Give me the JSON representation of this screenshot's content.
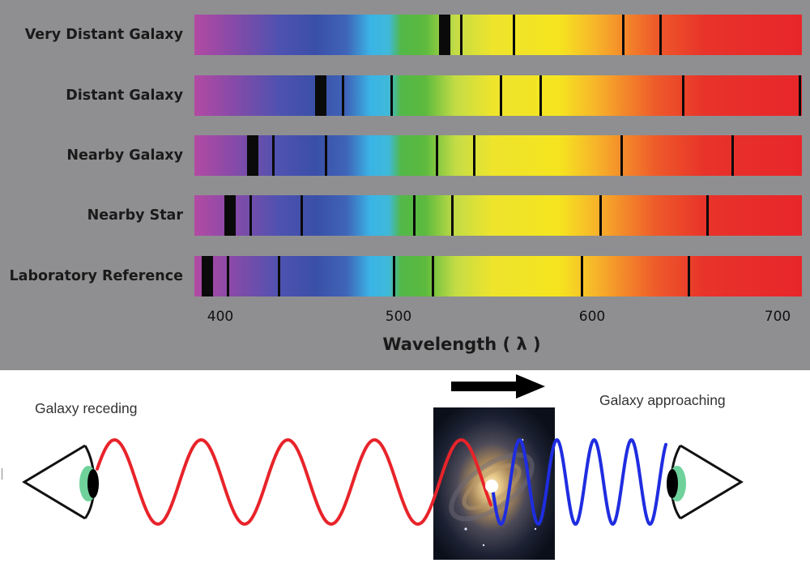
{
  "spectra": {
    "axis": {
      "min": 390,
      "max": 713
    },
    "rows": [
      {
        "label": "Very Distant Galaxy",
        "lines": [
          {
            "wl": 523,
            "strong": true
          },
          {
            "wl": 532
          },
          {
            "wl": 560
          },
          {
            "wl": 618
          },
          {
            "wl": 638
          }
        ]
      },
      {
        "label": "Distant Galaxy",
        "lines": [
          {
            "wl": 457,
            "strong": true
          },
          {
            "wl": 469
          },
          {
            "wl": 495
          },
          {
            "wl": 553
          },
          {
            "wl": 574
          },
          {
            "wl": 650
          },
          {
            "wl": 712
          }
        ]
      },
      {
        "label": "Nearby Galaxy",
        "lines": [
          {
            "wl": 421,
            "strong": true
          },
          {
            "wl": 432
          },
          {
            "wl": 460
          },
          {
            "wl": 519
          },
          {
            "wl": 539
          },
          {
            "wl": 617
          },
          {
            "wl": 676
          }
        ]
      },
      {
        "label": "Nearby Star",
        "lines": [
          {
            "wl": 409,
            "strong": true
          },
          {
            "wl": 420
          },
          {
            "wl": 447
          },
          {
            "wl": 507
          },
          {
            "wl": 527
          },
          {
            "wl": 606
          },
          {
            "wl": 663
          }
        ]
      },
      {
        "label": "Laboratory Reference",
        "lines": [
          {
            "wl": 397,
            "strong": true
          },
          {
            "wl": 408
          },
          {
            "wl": 435
          },
          {
            "wl": 496
          },
          {
            "wl": 517
          },
          {
            "wl": 596
          },
          {
            "wl": 653
          }
        ]
      }
    ],
    "ticks": [
      "400",
      "500",
      "600",
      "700"
    ],
    "axis_title": "Wavelength ( λ )"
  },
  "doppler": {
    "receding_label": "Galaxy receding",
    "approaching_label": "Galaxy approaching",
    "receding_color": "#e8232a",
    "approaching_color": "#1f2de0",
    "motion_direction": "right"
  }
}
